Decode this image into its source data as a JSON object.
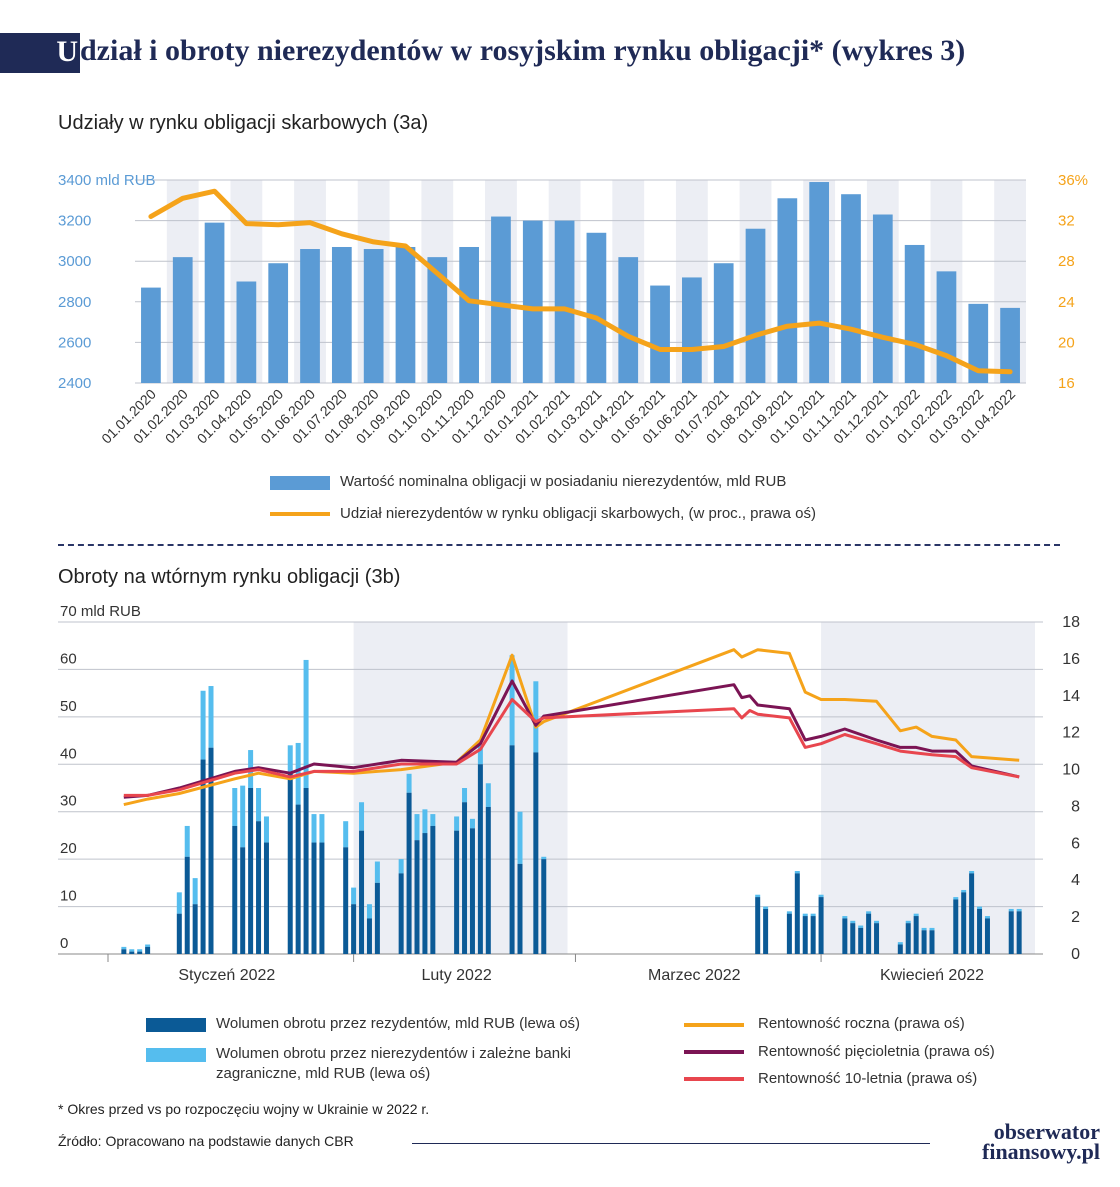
{
  "title": {
    "initial": "U",
    "rest": "dział i obroty nierezydentów w rosyjskim rynku obligacji* (wykres 3)"
  },
  "chart_a_title": "Udziały w rynku obligacji skarbowych (3a)",
  "chart_b_title": "Obroty na wtórnym rynku obligacji (3b)",
  "footnote": "* Okres przed vs po rozpoczęciu wojny w Ukrainie w 2022 r.",
  "source": "Źródło: Opracowano na podstawie danych CBR",
  "logo": {
    "line1": "obserwator",
    "line2": "finansowy.pl"
  },
  "colors": {
    "bar_a": "#5b9bd5",
    "line_a": "#f5a31a",
    "dark_bar": "#0b5a96",
    "light_bar": "#55bdee",
    "yield_1y": "#f5a31a",
    "yield_5y": "#7b1454",
    "yield_10y": "#e8464e",
    "title_blue": "#1f2a56"
  },
  "chart_data": [
    {
      "type": "bar",
      "title": "Udziały w rynku obligacji skarbowych (3a)",
      "categories": [
        "01.01.2020",
        "01.02.2020",
        "01.03.2020",
        "01.04.2020",
        "01.05.2020",
        "01.06.2020",
        "01.07.2020",
        "01.08.2020",
        "01.09.2020",
        "01.10.2020",
        "01.11.2020",
        "01.12.2020",
        "01.01.2021",
        "01.02.2021",
        "01.03.2021",
        "01.04.2021",
        "01.05.2021",
        "01.06.2021",
        "01.07.2021",
        "01.08.2021",
        "01.09.2021",
        "01.10.2021",
        "01.11.2021",
        "01.12.2021",
        "01.01.2022",
        "01.02.2022",
        "01.03.2022",
        "01.04.2022"
      ],
      "ylim": [
        2400,
        3400
      ],
      "y2lim": [
        16,
        36
      ],
      "y_ticks": [
        "3400 mld RUB",
        "3200",
        "3000",
        "2800",
        "2600",
        "2400"
      ],
      "y2_ticks": [
        "36%",
        "32",
        "28",
        "24",
        "20",
        "16"
      ],
      "series": [
        {
          "name": "Wartość nominalna obligacji w posiadaniu nierezydentów, mld RUB",
          "kind": "bar",
          "axis": "left",
          "values": [
            2870,
            3020,
            3190,
            2900,
            2990,
            3060,
            3070,
            3060,
            3070,
            3020,
            3070,
            3220,
            3200,
            3200,
            3140,
            3020,
            2880,
            2920,
            2990,
            3160,
            3310,
            3390,
            3330,
            3230,
            3080,
            2950,
            2790,
            2770
          ]
        },
        {
          "name": "Udział nierezydentów w rynku obligacji skarbowych, (w proc., prawa oś)",
          "kind": "line",
          "axis": "right",
          "values": [
            32.4,
            34.2,
            34.9,
            31.7,
            31.6,
            31.8,
            30.7,
            29.9,
            29.5,
            26.8,
            24.1,
            23.7,
            23.3,
            23.3,
            22.4,
            20.6,
            19.3,
            19.3,
            19.6,
            20.7,
            21.6,
            21.9,
            21.3,
            20.5,
            19.8,
            18.7,
            17.2,
            17.1
          ]
        }
      ],
      "legend_position": "bottom"
    },
    {
      "type": "bar",
      "title": "Obroty na wtórnym rynku obligacji (3b)",
      "x_labels": [
        "Styczeń 2022",
        "Luty 2022",
        "Marzec 2022",
        "Kwiecień 2022"
      ],
      "ylim": [
        0,
        70
      ],
      "y2lim": [
        0,
        18
      ],
      "y_ticks": [
        "70 mld RUB",
        "60",
        "50",
        "40",
        "30",
        "20",
        "10",
        "0"
      ],
      "y2_ticks": [
        "18",
        "16",
        "14",
        "12",
        "10",
        "8",
        "6",
        "4",
        "2",
        "0"
      ],
      "shaded_periods": [
        "Luty 2022",
        "Kwiecień 2022"
      ],
      "days": [
        "2022-01-03",
        "2022-01-04",
        "2022-01-05",
        "2022-01-06",
        "2022-01-10",
        "2022-01-11",
        "2022-01-12",
        "2022-01-13",
        "2022-01-14",
        "2022-01-17",
        "2022-01-18",
        "2022-01-19",
        "2022-01-20",
        "2022-01-21",
        "2022-01-24",
        "2022-01-25",
        "2022-01-26",
        "2022-01-27",
        "2022-01-28",
        "2022-01-31",
        "2022-02-01",
        "2022-02-02",
        "2022-02-03",
        "2022-02-04",
        "2022-02-07",
        "2022-02-08",
        "2022-02-09",
        "2022-02-10",
        "2022-02-11",
        "2022-02-14",
        "2022-02-15",
        "2022-02-16",
        "2022-02-17",
        "2022-02-18",
        "2022-02-21",
        "2022-02-22",
        "2022-02-24",
        "2022-02-25",
        "2022-03-24",
        "2022-03-25",
        "2022-03-28",
        "2022-03-29",
        "2022-03-30",
        "2022-03-31",
        "2022-04-01",
        "2022-04-04",
        "2022-04-05",
        "2022-04-06",
        "2022-04-07",
        "2022-04-08",
        "2022-04-11",
        "2022-04-12",
        "2022-04-13",
        "2022-04-14",
        "2022-04-15",
        "2022-04-18",
        "2022-04-19",
        "2022-04-20",
        "2022-04-21",
        "2022-04-22",
        "2022-04-25",
        "2022-04-26"
      ],
      "series": [
        {
          "name": "Wolumen obrotu przez rezydentów, mld RUB (lewa oś)",
          "kind": "bar",
          "stack": "vol",
          "axis": "left",
          "values": [
            1,
            0.5,
            0.5,
            1.5,
            8.5,
            20.5,
            10.5,
            41,
            43.5,
            27,
            22.5,
            35,
            28,
            23.5,
            38,
            31.5,
            35,
            23.5,
            23.5,
            22.5,
            10.5,
            26,
            7.5,
            15,
            17,
            34,
            24,
            25.5,
            27,
            26,
            32,
            26.5,
            40,
            31,
            44,
            19,
            42.5,
            20,
            12,
            9.5,
            8.5,
            17,
            8,
            8,
            12,
            7.5,
            6.5,
            5.5,
            8.5,
            6.5,
            2,
            6.5,
            8,
            5,
            5,
            11.5,
            13,
            17,
            9.5,
            7.5,
            9,
            9
          ]
        },
        {
          "name": "Wolumen obrotu przez nierezydentów i zależne banki zagraniczne, mld RUB (lewa oś)",
          "kind": "bar",
          "stack": "vol",
          "axis": "left",
          "values": [
            0.5,
            0.5,
            0.5,
            0.5,
            4.5,
            6.5,
            5.5,
            14.5,
            13,
            8,
            13,
            8,
            7,
            5.5,
            6,
            13,
            27,
            6,
            6,
            5.5,
            3.5,
            6,
            3,
            4.5,
            3,
            4,
            5.5,
            5,
            2.5,
            3,
            3,
            2,
            4,
            5,
            19,
            11,
            15,
            0.5,
            0.5,
            0.5,
            0.5,
            0.5,
            0.5,
            0.5,
            0.5,
            0.5,
            0.5,
            0.5,
            0.5,
            0.5,
            0.5,
            0.5,
            0.5,
            0.5,
            0.5,
            0.5,
            0.5,
            0.5,
            0.5,
            0.5,
            0.5,
            0.5
          ]
        },
        {
          "name": "Rentowność roczna (prawa oś)",
          "kind": "line",
          "axis": "right",
          "x": [
            "2022-01-03",
            "2022-01-06",
            "2022-01-10",
            "2022-01-17",
            "2022-01-20",
            "2022-01-24",
            "2022-01-27",
            "2022-02-01",
            "2022-02-07",
            "2022-02-14",
            "2022-02-17",
            "2022-02-21",
            "2022-02-24",
            "2022-02-25",
            "2022-03-21",
            "2022-03-22",
            "2022-03-23",
            "2022-03-24",
            "2022-03-28",
            "2022-03-30",
            "2022-04-01",
            "2022-04-04",
            "2022-04-08",
            "2022-04-11",
            "2022-04-13",
            "2022-04-15",
            "2022-04-18",
            "2022-04-20",
            "2022-04-26"
          ],
          "values": [
            8.1,
            8.4,
            8.7,
            9.5,
            9.8,
            9.5,
            9.9,
            9.8,
            10.0,
            10.4,
            11.6,
            16.2,
            12.3,
            12.6,
            16.5,
            16.1,
            16.3,
            16.5,
            16.3,
            14.2,
            13.8,
            13.8,
            13.7,
            12.1,
            12.3,
            11.8,
            11.6,
            10.7,
            10.5
          ]
        },
        {
          "name": "Rentowność pięcioletnia (prawa oś)",
          "kind": "line",
          "axis": "right",
          "x": [
            "2022-01-03",
            "2022-01-06",
            "2022-01-10",
            "2022-01-17",
            "2022-01-20",
            "2022-01-24",
            "2022-01-27",
            "2022-02-01",
            "2022-02-07",
            "2022-02-14",
            "2022-02-17",
            "2022-02-21",
            "2022-02-24",
            "2022-02-25",
            "2022-03-21",
            "2022-03-22",
            "2022-03-23",
            "2022-03-24",
            "2022-03-28",
            "2022-03-30",
            "2022-04-01",
            "2022-04-04",
            "2022-04-08",
            "2022-04-11",
            "2022-04-13",
            "2022-04-15",
            "2022-04-18",
            "2022-04-20",
            "2022-04-26"
          ],
          "values": [
            8.5,
            8.6,
            9.0,
            9.9,
            10.1,
            9.8,
            10.3,
            10.1,
            10.5,
            10.4,
            11.4,
            14.8,
            12.4,
            12.9,
            14.6,
            13.9,
            14.0,
            13.5,
            13.3,
            11.6,
            11.8,
            12.2,
            11.6,
            11.2,
            11.2,
            11.0,
            11.0,
            10.2,
            9.6
          ]
        },
        {
          "name": "Rentowność 10-letnia (prawa oś)",
          "kind": "line",
          "axis": "right",
          "x": [
            "2022-01-03",
            "2022-01-06",
            "2022-01-10",
            "2022-01-17",
            "2022-01-20",
            "2022-01-24",
            "2022-01-27",
            "2022-02-01",
            "2022-02-07",
            "2022-02-14",
            "2022-02-17",
            "2022-02-21",
            "2022-02-24",
            "2022-02-25",
            "2022-03-21",
            "2022-03-22",
            "2022-03-23",
            "2022-03-24",
            "2022-03-28",
            "2022-03-30",
            "2022-04-01",
            "2022-04-04",
            "2022-04-08",
            "2022-04-11",
            "2022-04-13",
            "2022-04-15",
            "2022-04-18",
            "2022-04-20",
            "2022-04-26"
          ],
          "values": [
            8.6,
            8.6,
            8.9,
            9.8,
            10.0,
            9.6,
            9.9,
            9.9,
            10.3,
            10.3,
            11.1,
            13.8,
            12.6,
            12.8,
            13.3,
            12.8,
            13.2,
            13.0,
            12.8,
            11.2,
            11.4,
            11.9,
            11.4,
            11.0,
            10.9,
            10.8,
            10.7,
            10.1,
            9.6
          ]
        }
      ],
      "legend_position": "bottom"
    }
  ]
}
